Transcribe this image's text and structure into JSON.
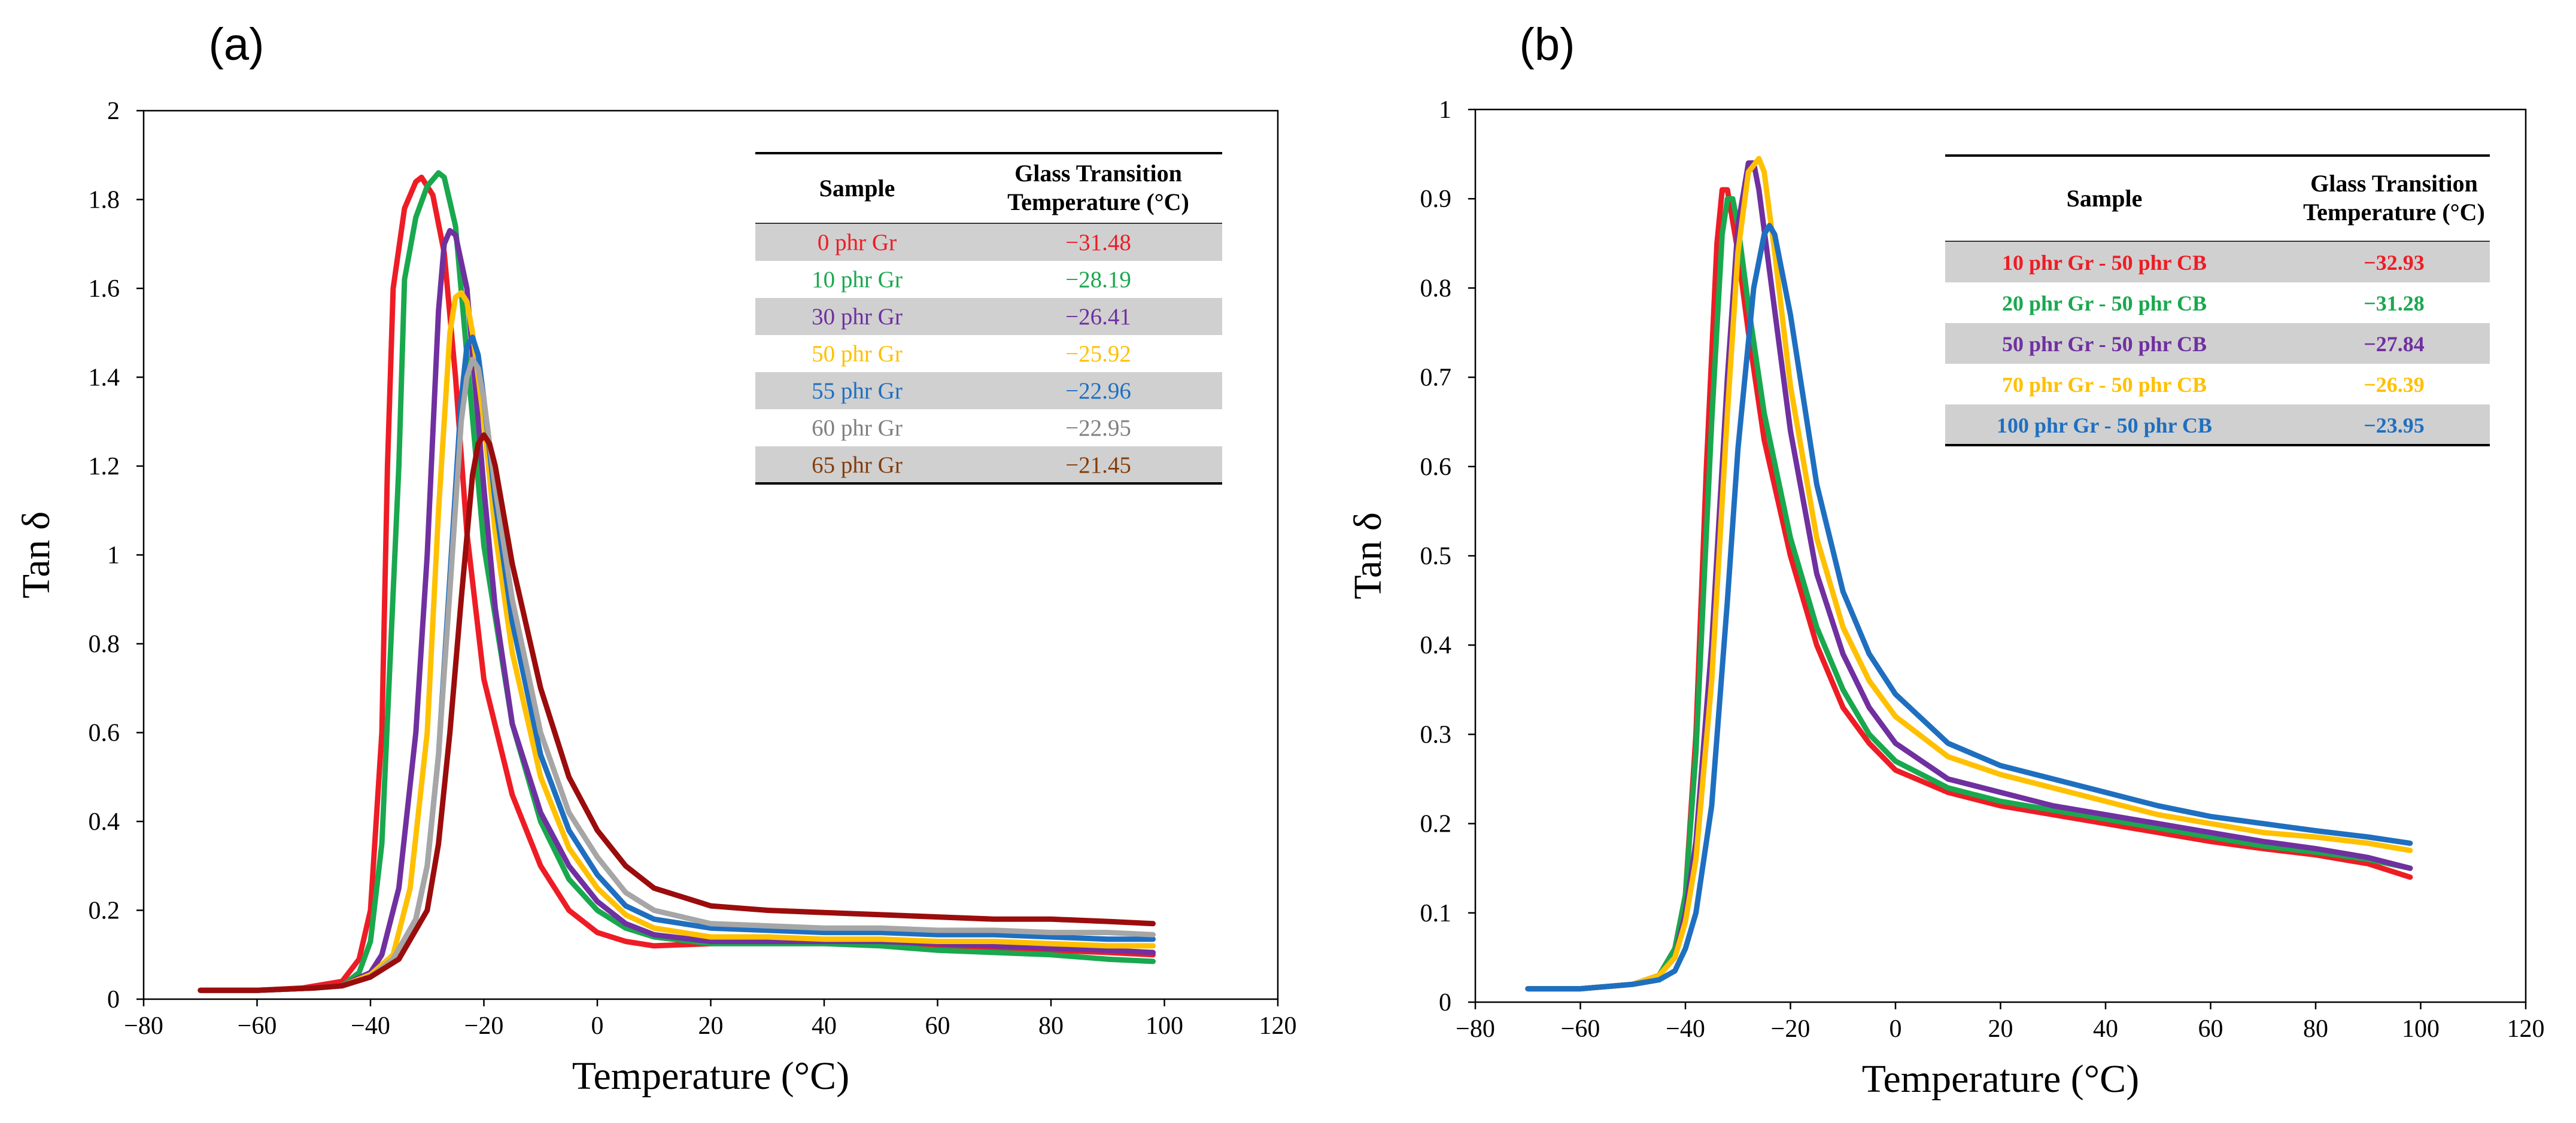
{
  "chart_data": [
    {
      "panel_label": "(a)",
      "type": "line",
      "xlabel": "Temperature (°C)",
      "ylabel": "Tan δ",
      "xlim": [
        -80,
        120
      ],
      "ylim": [
        0,
        2
      ],
      "x_ticks": [
        "−80",
        "−60",
        "−40",
        "−20",
        "0",
        "20",
        "40",
        "60",
        "80",
        "100",
        "120"
      ],
      "y_ticks": [
        "0",
        "0.2",
        "0.4",
        "0.6",
        "0.8",
        "1",
        "1.2",
        "1.4",
        "1.6",
        "1.8",
        "2"
      ],
      "table": {
        "header_sample": "Sample",
        "header_tg_line1": "Glass Transition",
        "header_tg_line2": "Temperature (°C)",
        "rows": [
          {
            "sample": "0 phr Gr",
            "tg": "−31.48",
            "color": "#ee1c25"
          },
          {
            "sample": "10 phr Gr",
            "tg": "−28.19",
            "color": "#19a84e"
          },
          {
            "sample": "30 phr Gr",
            "tg": "−26.41",
            "color": "#7030a0"
          },
          {
            "sample": "50 phr Gr",
            "tg": "−25.92",
            "color": "#ffc000"
          },
          {
            "sample": "55 phr Gr",
            "tg": "−22.96",
            "color": "#1f6fc0"
          },
          {
            "sample": "60 phr Gr",
            "tg": "−22.95",
            "color": "#808080"
          },
          {
            "sample": "65 phr Gr",
            "tg": "−21.45",
            "color": "#843c0c"
          }
        ]
      },
      "series": [
        {
          "name": "0 phr Gr",
          "color": "#ee1c25",
          "x": [
            -70,
            -60,
            -52,
            -45,
            -42,
            -40,
            -38,
            -37,
            -36,
            -34,
            -32,
            -31,
            -29,
            -27,
            -25,
            -23,
            -20,
            -15,
            -10,
            -5,
            0,
            5,
            10,
            20,
            30,
            40,
            50,
            60,
            70,
            80,
            90,
            98
          ],
          "y": [
            0.02,
            0.02,
            0.025,
            0.04,
            0.09,
            0.2,
            0.6,
            1.2,
            1.6,
            1.78,
            1.84,
            1.85,
            1.81,
            1.68,
            1.4,
            1.05,
            0.72,
            0.46,
            0.3,
            0.2,
            0.15,
            0.13,
            0.12,
            0.125,
            0.13,
            0.13,
            0.125,
            0.12,
            0.115,
            0.11,
            0.105,
            0.1
          ]
        },
        {
          "name": "10 phr Gr",
          "color": "#19a84e",
          "x": [
            -70,
            -60,
            -50,
            -45,
            -42,
            -40,
            -38,
            -35,
            -34,
            -32,
            -30,
            -28,
            -27,
            -25,
            -23,
            -20,
            -15,
            -10,
            -5,
            0,
            5,
            10,
            20,
            30,
            40,
            50,
            60,
            70,
            80,
            90,
            98
          ],
          "y": [
            0.02,
            0.02,
            0.025,
            0.03,
            0.06,
            0.13,
            0.35,
            1.2,
            1.62,
            1.76,
            1.83,
            1.86,
            1.85,
            1.74,
            1.45,
            1.02,
            0.62,
            0.4,
            0.27,
            0.2,
            0.16,
            0.14,
            0.125,
            0.125,
            0.125,
            0.12,
            0.11,
            0.105,
            0.1,
            0.09,
            0.085
          ]
        },
        {
          "name": "30 phr Gr",
          "color": "#7030a0",
          "x": [
            -70,
            -60,
            -50,
            -45,
            -40,
            -38,
            -35,
            -32,
            -30,
            -28,
            -27,
            -26,
            -25,
            -23,
            -20,
            -18,
            -15,
            -10,
            -5,
            0,
            5,
            10,
            20,
            30,
            40,
            50,
            60,
            70,
            80,
            90,
            98
          ],
          "y": [
            0.02,
            0.02,
            0.025,
            0.03,
            0.06,
            0.1,
            0.25,
            0.6,
            1.0,
            1.55,
            1.7,
            1.73,
            1.72,
            1.6,
            1.15,
            0.88,
            0.62,
            0.42,
            0.3,
            0.22,
            0.17,
            0.145,
            0.13,
            0.13,
            0.13,
            0.13,
            0.125,
            0.12,
            0.115,
            0.11,
            0.105
          ]
        },
        {
          "name": "50 phr Gr",
          "color": "#ffc000",
          "x": [
            -70,
            -60,
            -50,
            -45,
            -40,
            -36,
            -33,
            -30,
            -28,
            -26,
            -25,
            -24,
            -23,
            -22,
            -20,
            -18,
            -15,
            -10,
            -5,
            0,
            5,
            10,
            20,
            30,
            40,
            50,
            60,
            70,
            80,
            90,
            98
          ],
          "y": [
            0.02,
            0.02,
            0.025,
            0.03,
            0.055,
            0.1,
            0.25,
            0.6,
            1.1,
            1.5,
            1.58,
            1.59,
            1.57,
            1.5,
            1.3,
            1.05,
            0.78,
            0.5,
            0.34,
            0.25,
            0.19,
            0.16,
            0.14,
            0.14,
            0.135,
            0.135,
            0.13,
            0.13,
            0.125,
            0.12,
            0.12
          ]
        },
        {
          "name": "55 phr Gr",
          "color": "#1f6fc0",
          "x": [
            -70,
            -60,
            -50,
            -45,
            -40,
            -36,
            -32,
            -30,
            -28,
            -26,
            -24,
            -23,
            -22,
            -21,
            -20,
            -18,
            -15,
            -10,
            -5,
            0,
            5,
            10,
            20,
            30,
            40,
            50,
            60,
            70,
            80,
            90,
            98
          ],
          "y": [
            0.02,
            0.02,
            0.025,
            0.03,
            0.05,
            0.09,
            0.18,
            0.3,
            0.55,
            0.95,
            1.35,
            1.47,
            1.49,
            1.45,
            1.35,
            1.12,
            0.85,
            0.55,
            0.38,
            0.28,
            0.21,
            0.18,
            0.16,
            0.155,
            0.15,
            0.15,
            0.145,
            0.145,
            0.14,
            0.135,
            0.135
          ]
        },
        {
          "name": "60 phr Gr",
          "color": "#a6a6a6",
          "x": [
            -70,
            -60,
            -50,
            -45,
            -40,
            -36,
            -32,
            -30,
            -28,
            -26,
            -24,
            -23,
            -22,
            -21,
            -20,
            -18,
            -15,
            -10,
            -5,
            0,
            5,
            10,
            20,
            30,
            40,
            50,
            60,
            70,
            80,
            90,
            98
          ],
          "y": [
            0.02,
            0.02,
            0.025,
            0.03,
            0.05,
            0.09,
            0.18,
            0.3,
            0.55,
            0.92,
            1.3,
            1.4,
            1.44,
            1.42,
            1.35,
            1.15,
            0.9,
            0.6,
            0.42,
            0.32,
            0.24,
            0.2,
            0.17,
            0.165,
            0.16,
            0.16,
            0.155,
            0.155,
            0.15,
            0.15,
            0.145
          ]
        },
        {
          "name": "65 phr Gr",
          "color": "#9b0c0c",
          "x": [
            -70,
            -60,
            -50,
            -45,
            -40,
            -35,
            -30,
            -28,
            -26,
            -24,
            -22,
            -21,
            -20,
            -19,
            -18,
            -15,
            -10,
            -5,
            0,
            5,
            10,
            20,
            30,
            40,
            50,
            60,
            70,
            80,
            90,
            98
          ],
          "y": [
            0.02,
            0.02,
            0.025,
            0.03,
            0.05,
            0.09,
            0.2,
            0.35,
            0.6,
            0.9,
            1.18,
            1.25,
            1.27,
            1.25,
            1.2,
            0.98,
            0.7,
            0.5,
            0.38,
            0.3,
            0.25,
            0.21,
            0.2,
            0.195,
            0.19,
            0.185,
            0.18,
            0.18,
            0.175,
            0.17
          ]
        }
      ]
    },
    {
      "panel_label": "(b)",
      "type": "line",
      "xlabel": "Temperature (°C)",
      "ylabel": "Tan δ",
      "xlim": [
        -80,
        120
      ],
      "ylim": [
        0,
        1
      ],
      "x_ticks": [
        "−80",
        "−60",
        "−40",
        "−20",
        "0",
        "20",
        "40",
        "60",
        "80",
        "100",
        "120"
      ],
      "y_ticks": [
        "0",
        "0.1",
        "0.2",
        "0.3",
        "0.4",
        "0.5",
        "0.6",
        "0.7",
        "0.8",
        "0.9",
        "1"
      ],
      "table": {
        "header_sample": "Sample",
        "header_tg_line1": "Glass Transition",
        "header_tg_line2": "Temperature (°C)",
        "rows": [
          {
            "sample": "10 phr Gr - 50 phr CB",
            "tg": "−32.93",
            "color": "#ee1c25"
          },
          {
            "sample": "20 phr Gr - 50 phr CB",
            "tg": "−31.28",
            "color": "#19a84e"
          },
          {
            "sample": "50 phr Gr - 50 phr CB",
            "tg": "−27.84",
            "color": "#7030a0"
          },
          {
            "sample": "70 phr Gr - 50 phr CB",
            "tg": "−26.39",
            "color": "#ffc000"
          },
          {
            "sample": "100 phr Gr - 50 phr CB",
            "tg": "−23.95",
            "color": "#1f6fc0"
          }
        ]
      },
      "series": [
        {
          "name": "10 phr Gr - 50 phr CB",
          "color": "#ee1c25",
          "x": [
            -70,
            -60,
            -50,
            -45,
            -42,
            -40,
            -38,
            -36,
            -34,
            -33,
            -32,
            -30,
            -28,
            -25,
            -20,
            -15,
            -10,
            -5,
            0,
            10,
            20,
            30,
            40,
            50,
            60,
            70,
            80,
            85,
            90,
            98
          ],
          "y": [
            0.015,
            0.015,
            0.02,
            0.03,
            0.06,
            0.12,
            0.3,
            0.6,
            0.85,
            0.91,
            0.91,
            0.84,
            0.75,
            0.63,
            0.5,
            0.4,
            0.33,
            0.29,
            0.26,
            0.235,
            0.22,
            0.21,
            0.2,
            0.19,
            0.18,
            0.172,
            0.165,
            0.16,
            0.155,
            0.14
          ]
        },
        {
          "name": "20 phr Gr - 50 phr CB",
          "color": "#19a84e",
          "x": [
            -70,
            -60,
            -50,
            -45,
            -42,
            -40,
            -38,
            -35,
            -33,
            -32,
            -31,
            -30,
            -28,
            -25,
            -20,
            -15,
            -10,
            -5,
            0,
            10,
            20,
            30,
            40,
            50,
            60,
            70,
            80,
            90,
            98
          ],
          "y": [
            0.015,
            0.015,
            0.02,
            0.03,
            0.06,
            0.12,
            0.28,
            0.65,
            0.86,
            0.9,
            0.9,
            0.87,
            0.78,
            0.66,
            0.52,
            0.42,
            0.35,
            0.3,
            0.27,
            0.24,
            0.225,
            0.215,
            0.205,
            0.195,
            0.185,
            0.175,
            0.168,
            0.16,
            0.15
          ]
        },
        {
          "name": "50 phr Gr - 50 phr CB",
          "color": "#7030a0",
          "x": [
            -70,
            -60,
            -50,
            -45,
            -42,
            -40,
            -38,
            -35,
            -32,
            -30,
            -28,
            -27,
            -26,
            -24,
            -20,
            -15,
            -10,
            -5,
            0,
            10,
            20,
            30,
            40,
            50,
            60,
            70,
            80,
            90,
            98
          ],
          "y": [
            0.015,
            0.015,
            0.02,
            0.03,
            0.05,
            0.1,
            0.18,
            0.4,
            0.7,
            0.87,
            0.94,
            0.94,
            0.91,
            0.82,
            0.64,
            0.48,
            0.39,
            0.33,
            0.29,
            0.25,
            0.235,
            0.22,
            0.21,
            0.2,
            0.19,
            0.18,
            0.172,
            0.162,
            0.15
          ]
        },
        {
          "name": "70 phr Gr - 50 phr CB",
          "color": "#ffc000",
          "x": [
            -70,
            -60,
            -50,
            -45,
            -42,
            -40,
            -38,
            -35,
            -32,
            -30,
            -28,
            -26,
            -25,
            -23,
            -20,
            -15,
            -10,
            -5,
            0,
            10,
            20,
            30,
            40,
            50,
            60,
            70,
            80,
            90,
            98
          ],
          "y": [
            0.015,
            0.015,
            0.02,
            0.03,
            0.05,
            0.09,
            0.16,
            0.36,
            0.66,
            0.84,
            0.93,
            0.945,
            0.93,
            0.84,
            0.69,
            0.52,
            0.42,
            0.36,
            0.32,
            0.275,
            0.255,
            0.24,
            0.225,
            0.21,
            0.2,
            0.19,
            0.185,
            0.178,
            0.17
          ]
        },
        {
          "name": "100 phr Gr - 50 phr CB",
          "color": "#1f6fc0",
          "x": [
            -70,
            -60,
            -50,
            -45,
            -42,
            -40,
            -38,
            -35,
            -32,
            -30,
            -27,
            -25,
            -24,
            -23,
            -20,
            -15,
            -10,
            -5,
            0,
            10,
            20,
            30,
            40,
            50,
            60,
            70,
            80,
            90,
            98
          ],
          "y": [
            0.015,
            0.015,
            0.02,
            0.025,
            0.035,
            0.06,
            0.1,
            0.22,
            0.45,
            0.62,
            0.8,
            0.86,
            0.87,
            0.86,
            0.77,
            0.58,
            0.46,
            0.39,
            0.345,
            0.29,
            0.265,
            0.25,
            0.235,
            0.22,
            0.208,
            0.2,
            0.192,
            0.185,
            0.178
          ]
        }
      ]
    }
  ]
}
